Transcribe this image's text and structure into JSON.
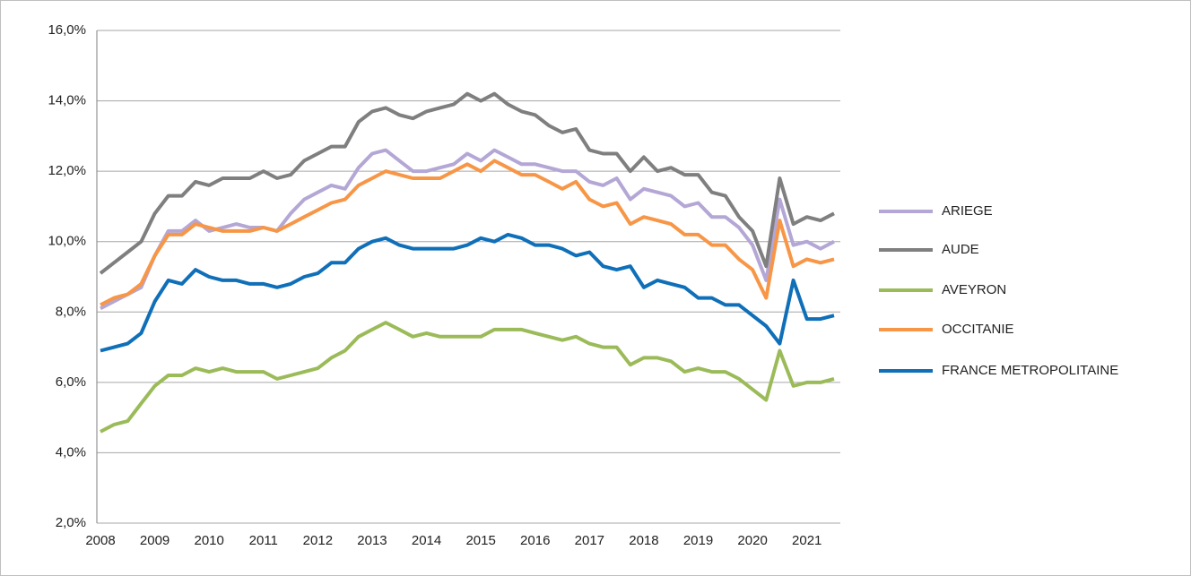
{
  "chart_data": {
    "type": "line",
    "categories": [
      "2008",
      null,
      null,
      null,
      "2009",
      null,
      null,
      null,
      "2010",
      null,
      null,
      null,
      "2011",
      null,
      null,
      null,
      "2012",
      null,
      null,
      null,
      "2013",
      null,
      null,
      null,
      "2014",
      null,
      null,
      null,
      "2015",
      null,
      null,
      null,
      "2016",
      null,
      null,
      null,
      "2017",
      null,
      null,
      null,
      "2018",
      null,
      null,
      null,
      "2019",
      null,
      null,
      null,
      "2020",
      null,
      null,
      null,
      "2021",
      null,
      null
    ],
    "ylim": [
      2,
      16
    ],
    "yticks": [
      {
        "value": 2,
        "label": "2,0%"
      },
      {
        "value": 4,
        "label": "4,0%"
      },
      {
        "value": 6,
        "label": "6,0%"
      },
      {
        "value": 8,
        "label": "8,0%"
      },
      {
        "value": 10,
        "label": "10,0%"
      },
      {
        "value": 12,
        "label": "12,0%"
      },
      {
        "value": 14,
        "label": "14,0%"
      },
      {
        "value": 16,
        "label": "16,0%"
      }
    ],
    "grid": true,
    "legend": "right",
    "series": [
      {
        "name": "ARIEGE",
        "color": "#b4a7d6",
        "values": [
          8.1,
          8.3,
          8.5,
          8.7,
          9.6,
          10.3,
          10.3,
          10.6,
          10.3,
          10.4,
          10.5,
          10.4,
          10.4,
          10.3,
          10.8,
          11.2,
          11.4,
          11.6,
          11.5,
          12.1,
          12.5,
          12.6,
          12.3,
          12.0,
          12.0,
          12.1,
          12.2,
          12.5,
          12.3,
          12.6,
          12.4,
          12.2,
          12.2,
          12.1,
          12.0,
          12.0,
          11.7,
          11.6,
          11.8,
          11.2,
          11.5,
          11.4,
          11.3,
          11.0,
          11.1,
          10.7,
          10.7,
          10.4,
          9.9,
          8.9,
          11.2,
          9.9,
          10.0,
          9.8,
          10.0
        ]
      },
      {
        "name": "AUDE",
        "color": "#7f7f7f",
        "values": [
          9.1,
          9.4,
          9.7,
          10.0,
          10.8,
          11.3,
          11.3,
          11.7,
          11.6,
          11.8,
          11.8,
          11.8,
          12.0,
          11.8,
          11.9,
          12.3,
          12.5,
          12.7,
          12.7,
          13.4,
          13.7,
          13.8,
          13.6,
          13.5,
          13.7,
          13.8,
          13.9,
          14.2,
          14.0,
          14.2,
          13.9,
          13.7,
          13.6,
          13.3,
          13.1,
          13.2,
          12.6,
          12.5,
          12.5,
          12.0,
          12.4,
          12.0,
          12.1,
          11.9,
          11.9,
          11.4,
          11.3,
          10.7,
          10.3,
          9.3,
          11.8,
          10.5,
          10.7,
          10.6,
          10.8
        ]
      },
      {
        "name": "AVEYRON",
        "color": "#9bbb59",
        "values": [
          4.6,
          4.8,
          4.9,
          5.4,
          5.9,
          6.2,
          6.2,
          6.4,
          6.3,
          6.4,
          6.3,
          6.3,
          6.3,
          6.1,
          6.2,
          6.3,
          6.4,
          6.7,
          6.9,
          7.3,
          7.5,
          7.7,
          7.5,
          7.3,
          7.4,
          7.3,
          7.3,
          7.3,
          7.3,
          7.5,
          7.5,
          7.5,
          7.4,
          7.3,
          7.2,
          7.3,
          7.1,
          7.0,
          7.0,
          6.5,
          6.7,
          6.7,
          6.6,
          6.3,
          6.4,
          6.3,
          6.3,
          6.1,
          5.8,
          5.5,
          6.9,
          5.9,
          6.0,
          6.0,
          6.1
        ]
      },
      {
        "name": "OCCITANIE",
        "color": "#f79646",
        "values": [
          8.2,
          8.4,
          8.5,
          8.8,
          9.6,
          10.2,
          10.2,
          10.5,
          10.4,
          10.3,
          10.3,
          10.3,
          10.4,
          10.3,
          10.5,
          10.7,
          10.9,
          11.1,
          11.2,
          11.6,
          11.8,
          12.0,
          11.9,
          11.8,
          11.8,
          11.8,
          12.0,
          12.2,
          12.0,
          12.3,
          12.1,
          11.9,
          11.9,
          11.7,
          11.5,
          11.7,
          11.2,
          11.0,
          11.1,
          10.5,
          10.7,
          10.6,
          10.5,
          10.2,
          10.2,
          9.9,
          9.9,
          9.5,
          9.2,
          8.4,
          10.6,
          9.3,
          9.5,
          9.4,
          9.5
        ]
      },
      {
        "name": "FRANCE METROPOLITAINE",
        "color": "#0f6fb8",
        "values": [
          6.9,
          7.0,
          7.1,
          7.4,
          8.3,
          8.9,
          8.8,
          9.2,
          9.0,
          8.9,
          8.9,
          8.8,
          8.8,
          8.7,
          8.8,
          9.0,
          9.1,
          9.4,
          9.4,
          9.8,
          10.0,
          10.1,
          9.9,
          9.8,
          9.8,
          9.8,
          9.8,
          9.9,
          10.1,
          10.0,
          10.2,
          10.1,
          9.9,
          9.9,
          9.8,
          9.6,
          9.7,
          9.3,
          9.2,
          9.3,
          8.7,
          8.9,
          8.8,
          8.7,
          8.4,
          8.4,
          8.2,
          8.2,
          7.9,
          7.6,
          7.1,
          8.9,
          7.8,
          7.8,
          7.9
        ]
      }
    ]
  }
}
